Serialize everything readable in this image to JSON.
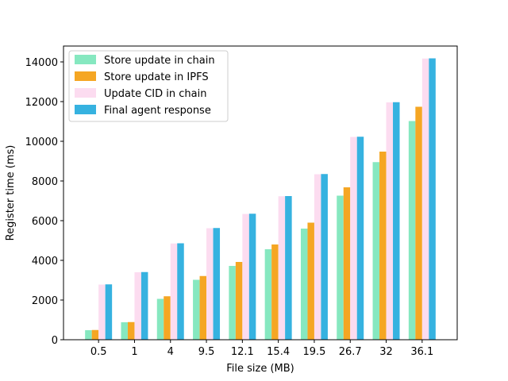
{
  "chart_data": {
    "type": "bar",
    "categories": [
      "0.5",
      "1",
      "4",
      "9.5",
      "12.1",
      "15.4",
      "19.5",
      "26.7",
      "32",
      "36.1"
    ],
    "series": [
      {
        "name": "Store update in chain",
        "color": "#86e8c0",
        "values": [
          480,
          880,
          2060,
          3020,
          3720,
          4560,
          5600,
          7260,
          8950,
          11020
        ]
      },
      {
        "name": "Store update in IPFS",
        "color": "#f5a623",
        "values": [
          490,
          890,
          2190,
          3210,
          3920,
          4800,
          5900,
          7680,
          9480,
          11740
        ]
      },
      {
        "name": "Update CID in chain",
        "color": "#fcdcf0",
        "values": [
          2780,
          3400,
          4850,
          5620,
          6340,
          7230,
          8340,
          10220,
          11960,
          14170
        ]
      },
      {
        "name": "Final agent response",
        "color": "#36b2e0",
        "values": [
          2790,
          3410,
          4860,
          5630,
          6350,
          7240,
          8350,
          10230,
          11970,
          14180
        ]
      }
    ],
    "xlabel": "File size (MB)",
    "ylabel": "Register time (ms)",
    "ylim": [
      0,
      14800
    ],
    "yticks": [
      0,
      2000,
      4000,
      6000,
      8000,
      10000,
      12000,
      14000
    ],
    "grid": false,
    "legend_position": "top-left"
  }
}
